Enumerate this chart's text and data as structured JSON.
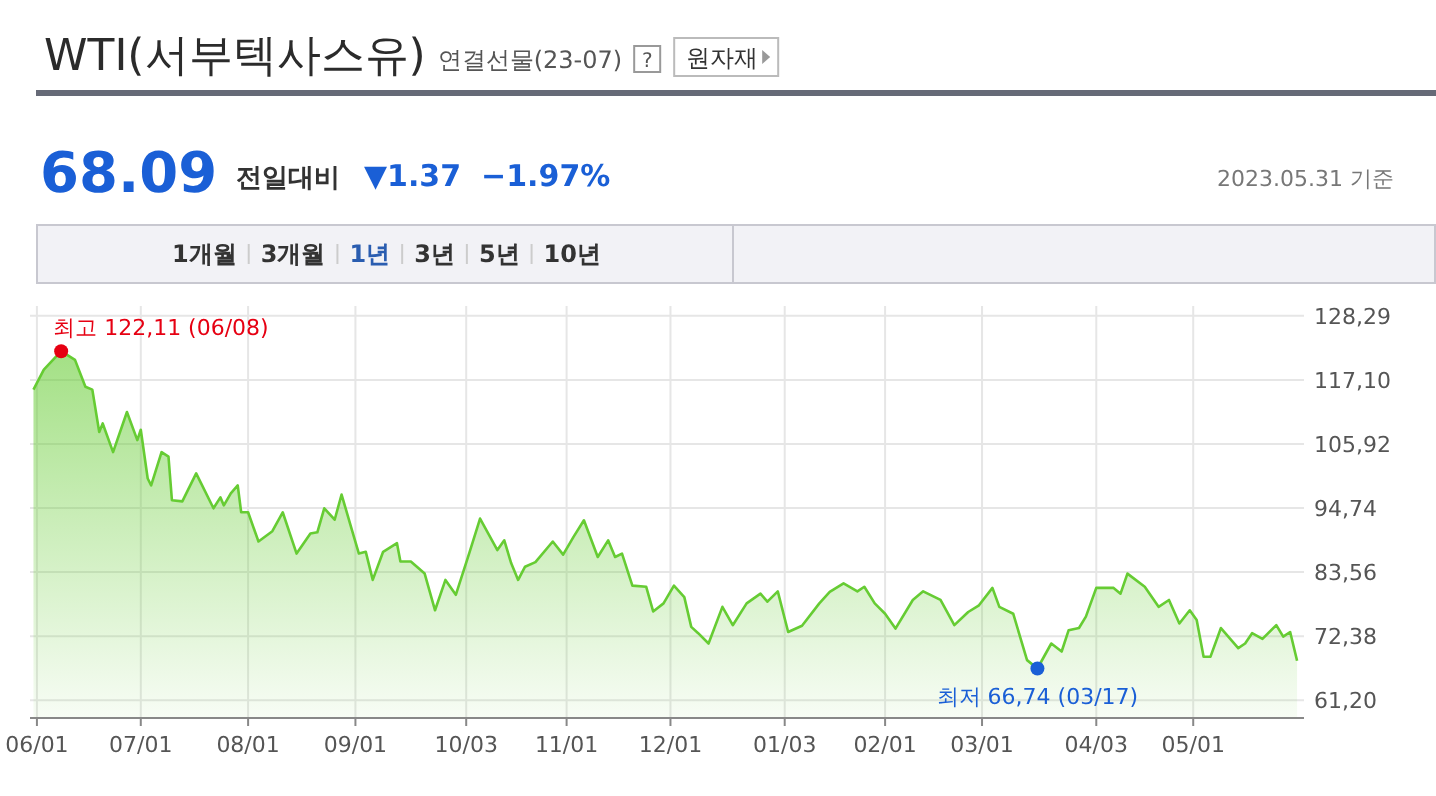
{
  "chart_data": {
    "type": "area",
    "title": "WTI(서부텍사스유)",
    "subtitle": "연결선물(23-07)",
    "annotations": [
      "?",
      "원자재",
      "68.09",
      "전일대비",
      "▼1.37",
      "−1.97%",
      "2023.05.31 기준",
      "1개월",
      "3개월",
      "1년",
      "3년",
      "5년",
      "10년",
      {
        "text": "최고 122,11 (06/08)",
        "x": "2022-06-08",
        "y": 122.11
      },
      {
        "text": "최저 66,74 (03/17)",
        "x": "2023-03-17",
        "y": 66.74
      }
    ],
    "grid": true,
    "marker": "none",
    "line_style": "solid",
    "xlim": [
      "2022-05-30",
      "2023-06-02"
    ],
    "xticks": [
      {
        "value": "2022-06-01",
        "label": "06/01"
      },
      {
        "value": "2022-07-01",
        "label": "07/01"
      },
      {
        "value": "2022-08-01",
        "label": "08/01"
      },
      {
        "value": "2022-09-01",
        "label": "09/01"
      },
      {
        "value": "2022-10-03",
        "label": "10/03"
      },
      {
        "value": "2022-11-01",
        "label": "11/01"
      },
      {
        "value": "2022-12-01",
        "label": "12/01"
      },
      {
        "value": "2023-01-03",
        "label": "01/03"
      },
      {
        "value": "2023-02-01",
        "label": "02/01"
      },
      {
        "value": "2023-03-01",
        "label": "03/01"
      },
      {
        "value": "2023-04-03",
        "label": "04/03"
      },
      {
        "value": "2023-05-01",
        "label": "05/01"
      }
    ],
    "ylim": [
      58.1,
      130.0
    ],
    "yticks": [
      {
        "value": 61.2,
        "label": "61,20"
      },
      {
        "value": 72.38,
        "label": "72,38"
      },
      {
        "value": 83.56,
        "label": "83,56"
      },
      {
        "value": 94.74,
        "label": "94,74"
      },
      {
        "value": 105.92,
        "label": "105,92"
      },
      {
        "value": 117.1,
        "label": "117,10"
      },
      {
        "value": 128.29,
        "label": "128,29"
      }
    ],
    "series": [
      {
        "color": "#66cc33",
        "x": [
          "2022-05-31",
          "2022-06-03",
          "2022-06-08",
          "2022-06-12",
          "2022-06-15",
          "2022-06-17",
          "2022-06-19",
          "2022-06-20",
          "2022-06-23",
          "2022-06-27",
          "2022-06-30",
          "2022-07-01",
          "2022-07-03",
          "2022-07-04",
          "2022-07-07",
          "2022-07-09",
          "2022-07-10",
          "2022-07-13",
          "2022-07-17",
          "2022-07-22",
          "2022-07-24",
          "2022-07-25",
          "2022-07-27",
          "2022-07-29",
          "2022-07-30",
          "2022-08-01",
          "2022-08-04",
          "2022-08-08",
          "2022-08-11",
          "2022-08-15",
          "2022-08-19",
          "2022-08-21",
          "2022-08-23",
          "2022-08-26",
          "2022-08-28",
          "2022-08-31",
          "2022-09-02",
          "2022-09-04",
          "2022-09-06",
          "2022-09-09",
          "2022-09-13",
          "2022-09-14",
          "2022-09-17",
          "2022-09-21",
          "2022-09-24",
          "2022-09-27",
          "2022-09-30",
          "2022-10-04",
          "2022-10-07",
          "2022-10-12",
          "2022-10-14",
          "2022-10-16",
          "2022-10-18",
          "2022-10-20",
          "2022-10-23",
          "2022-10-28",
          "2022-10-31",
          "2022-11-03",
          "2022-11-06",
          "2022-11-10",
          "2022-11-13",
          "2022-11-15",
          "2022-11-17",
          "2022-11-20",
          "2022-11-24",
          "2022-11-26",
          "2022-11-29",
          "2022-12-02",
          "2022-12-05",
          "2022-12-07",
          "2022-12-09",
          "2022-12-12",
          "2022-12-16",
          "2022-12-19",
          "2022-12-23",
          "2022-12-27",
          "2022-12-29",
          "2023-01-01",
          "2023-01-04",
          "2023-01-08",
          "2023-01-13",
          "2023-01-16",
          "2023-01-20",
          "2023-01-24",
          "2023-01-26",
          "2023-01-29",
          "2023-02-01",
          "2023-02-04",
          "2023-02-09",
          "2023-02-12",
          "2023-02-17",
          "2023-02-21",
          "2023-02-25",
          "2023-02-28",
          "2023-03-04",
          "2023-03-06",
          "2023-03-10",
          "2023-03-14",
          "2023-03-17",
          "2023-03-21",
          "2023-03-24",
          "2023-03-26",
          "2023-03-29",
          "2023-03-31",
          "2023-04-03",
          "2023-04-08",
          "2023-04-10",
          "2023-04-12",
          "2023-04-17",
          "2023-04-21",
          "2023-04-24",
          "2023-04-27",
          "2023-04-30",
          "2023-05-02",
          "2023-05-04",
          "2023-05-06",
          "2023-05-09",
          "2023-05-14",
          "2023-05-16",
          "2023-05-18",
          "2023-05-21",
          "2023-05-25",
          "2023-05-27",
          "2023-05-29",
          "2023-05-31"
        ],
        "values": [
          115.4,
          118.9,
          122.11,
          120.6,
          115.9,
          115.4,
          108.0,
          109.5,
          104.5,
          111.5,
          106.6,
          108.4,
          99.9,
          98.7,
          104.5,
          103.7,
          96.1,
          95.9,
          100.8,
          94.7,
          96.6,
          95.2,
          97.3,
          98.7,
          94.0,
          94.0,
          88.9,
          90.7,
          94.0,
          86.8,
          90.3,
          90.5,
          94.7,
          92.7,
          97.1,
          90.9,
          86.8,
          87.1,
          82.2,
          87.1,
          88.6,
          85.4,
          85.4,
          83.3,
          76.9,
          82.2,
          79.6,
          87.1,
          92.9,
          87.4,
          89.1,
          85.1,
          82.2,
          84.5,
          85.3,
          88.9,
          86.6,
          89.7,
          92.6,
          86.2,
          89.1,
          86.2,
          86.8,
          81.2,
          81.0,
          76.7,
          78.1,
          81.2,
          79.2,
          74.0,
          72.9,
          71.1,
          77.5,
          74.3,
          78.1,
          79.8,
          78.4,
          80.2,
          73.1,
          74.2,
          78.1,
          80.1,
          81.6,
          80.2,
          81.0,
          78.1,
          76.3,
          73.7,
          78.7,
          80.2,
          78.7,
          74.3,
          76.6,
          77.7,
          80.8,
          77.5,
          76.3,
          68.2,
          66.74,
          71.1,
          69.7,
          73.4,
          73.8,
          75.8,
          80.8,
          80.8,
          79.8,
          83.3,
          81.0,
          77.5,
          78.7,
          74.6,
          76.9,
          75.2,
          68.8,
          68.8,
          73.8,
          70.3,
          71.1,
          72.9,
          71.9,
          74.3,
          72.3,
          73.1,
          68.09
        ]
      }
    ]
  }
}
